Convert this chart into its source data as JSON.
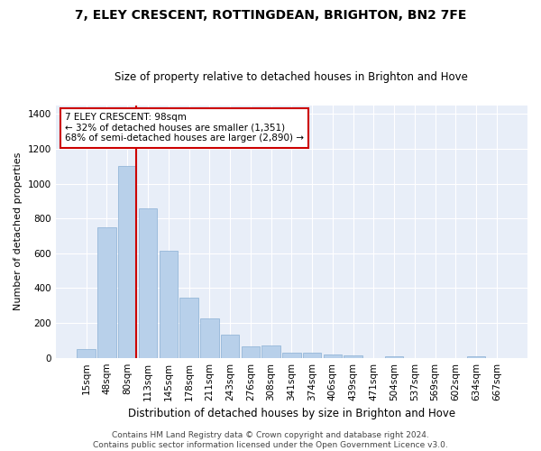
{
  "title": "7, ELEY CRESCENT, ROTTINGDEAN, BRIGHTON, BN2 7FE",
  "subtitle": "Size of property relative to detached houses in Brighton and Hove",
  "xlabel": "Distribution of detached houses by size in Brighton and Hove",
  "ylabel": "Number of detached properties",
  "footer1": "Contains HM Land Registry data © Crown copyright and database right 2024.",
  "footer2": "Contains public sector information licensed under the Open Government Licence v3.0.",
  "annotation_title": "7 ELEY CRESCENT: 98sqm",
  "annotation_line1": "← 32% of detached houses are smaller (1,351)",
  "annotation_line2": "68% of semi-detached houses are larger (2,890) →",
  "bar_labels": [
    "15sqm",
    "48sqm",
    "80sqm",
    "113sqm",
    "145sqm",
    "178sqm",
    "211sqm",
    "243sqm",
    "276sqm",
    "308sqm",
    "341sqm",
    "374sqm",
    "406sqm",
    "439sqm",
    "471sqm",
    "504sqm",
    "537sqm",
    "569sqm",
    "602sqm",
    "634sqm",
    "667sqm"
  ],
  "bar_values": [
    50,
    750,
    1100,
    860,
    615,
    345,
    225,
    135,
    65,
    70,
    30,
    30,
    20,
    15,
    0,
    10,
    0,
    0,
    0,
    10,
    0
  ],
  "bar_color": "#b8d0ea",
  "bar_edgecolor": "#8ab0d4",
  "vline_color": "#cc0000",
  "plot_bg_color": "#e8eef8",
  "annotation_box_color": "#cc0000",
  "ylim": [
    0,
    1450
  ],
  "yticks": [
    0,
    200,
    400,
    600,
    800,
    1000,
    1200,
    1400
  ],
  "title_fontsize": 10,
  "subtitle_fontsize": 8.5,
  "ylabel_fontsize": 8,
  "xlabel_fontsize": 8.5,
  "tick_fontsize": 7.5,
  "footer_fontsize": 6.5
}
